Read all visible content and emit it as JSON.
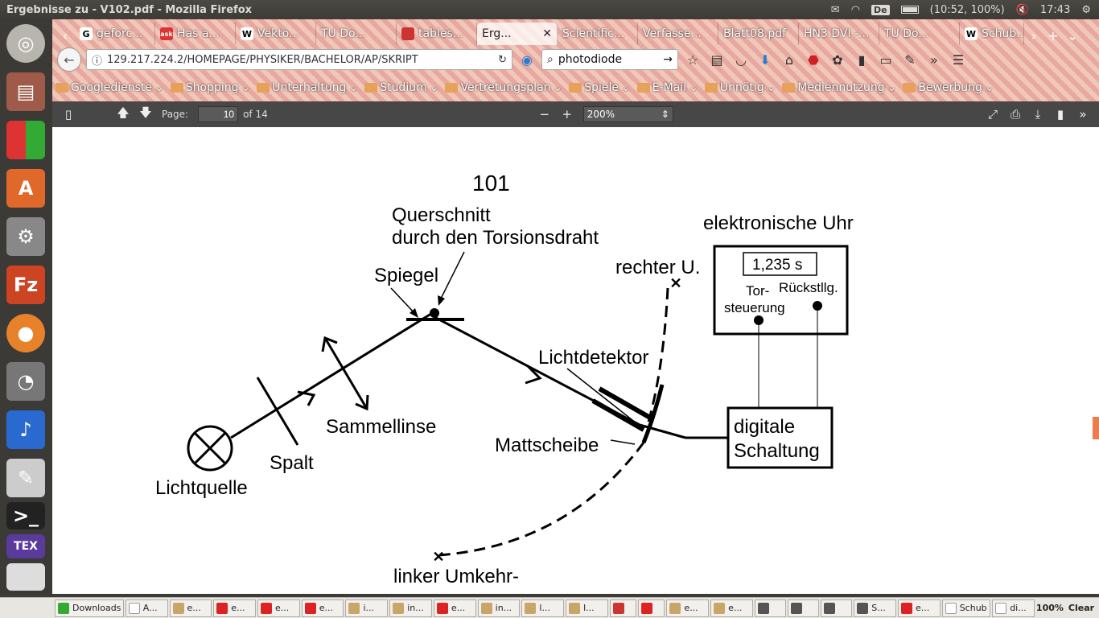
{
  "window": {
    "title": "Ergebnisse zu - V102.pdf - Mozilla Firefox",
    "keyboard": "De",
    "battery": "(10:52, 100%)",
    "clock": "17:43"
  },
  "tabs": [
    {
      "label": "geforc...",
      "icon": "G"
    },
    {
      "label": "Has a...",
      "icon": "ask"
    },
    {
      "label": "Vekto...",
      "icon": "W"
    },
    {
      "label": "TU Do...",
      "icon": ""
    },
    {
      "label": "tables...",
      "icon": ""
    },
    {
      "label": "Erg...",
      "icon": "",
      "active": true
    },
    {
      "label": "Scientific...",
      "icon": ""
    },
    {
      "label": "Verfasse...",
      "icon": ""
    },
    {
      "label": "Blatt08.pdf",
      "icon": ""
    },
    {
      "label": "HN3.DVI -...",
      "icon": ""
    },
    {
      "label": "TU Do...",
      "icon": ""
    },
    {
      "label": "Schub...",
      "icon": "W"
    }
  ],
  "navbar": {
    "url": "129.217.224.2/HOMEPAGE/PHYSIKER/BACHELOR/AP/SKRIPT",
    "search_value": "photodiode"
  },
  "bookmarks": [
    "Googledienste",
    "Shopping",
    "Unterhaltung",
    "Studium",
    "Vertretungsplan",
    "Spiele",
    "E-Mail",
    "Unnötig",
    "Mediennutzung",
    "Bewerbung"
  ],
  "pdf_toolbar": {
    "page_label": "Page:",
    "page_value": "10",
    "page_total": "of 14",
    "zoom_value": "200%"
  },
  "document": {
    "page_number": "101",
    "labels": {
      "querschnitt_line1": "Querschnitt",
      "querschnitt_line2": "durch den Torsionsdraht",
      "spiegel": "Spiegel",
      "uhr_title": "elektronische Uhr",
      "uhr_display": "1,235 s",
      "torsteuerung_line1": "Tor-",
      "torsteuerung_line2": "steuerung",
      "rueckstellung": "Rückstllg.",
      "rechter": "rechter U.",
      "lichtdetektor": "Lichtdetektor",
      "sammellinse": "Sammellinse",
      "mattscheibe": "Mattscheibe",
      "spalt": "Spalt",
      "lichtquelle": "Lichtquelle",
      "schaltung_line1": "digitale",
      "schaltung_line2": "Schaltung",
      "linker": "linker Umkehr-"
    }
  },
  "taskbar": {
    "items": [
      "Downloads",
      "A...",
      "e...",
      "e...",
      "e...",
      "e...",
      "i...",
      "in...",
      "e...",
      "in...",
      "l...",
      "l...",
      "",
      "",
      "e...",
      "e...",
      "",
      "",
      "",
      "S...",
      "e...",
      "Schub",
      "di..."
    ],
    "zoom": "100%",
    "clear": "Clear"
  }
}
